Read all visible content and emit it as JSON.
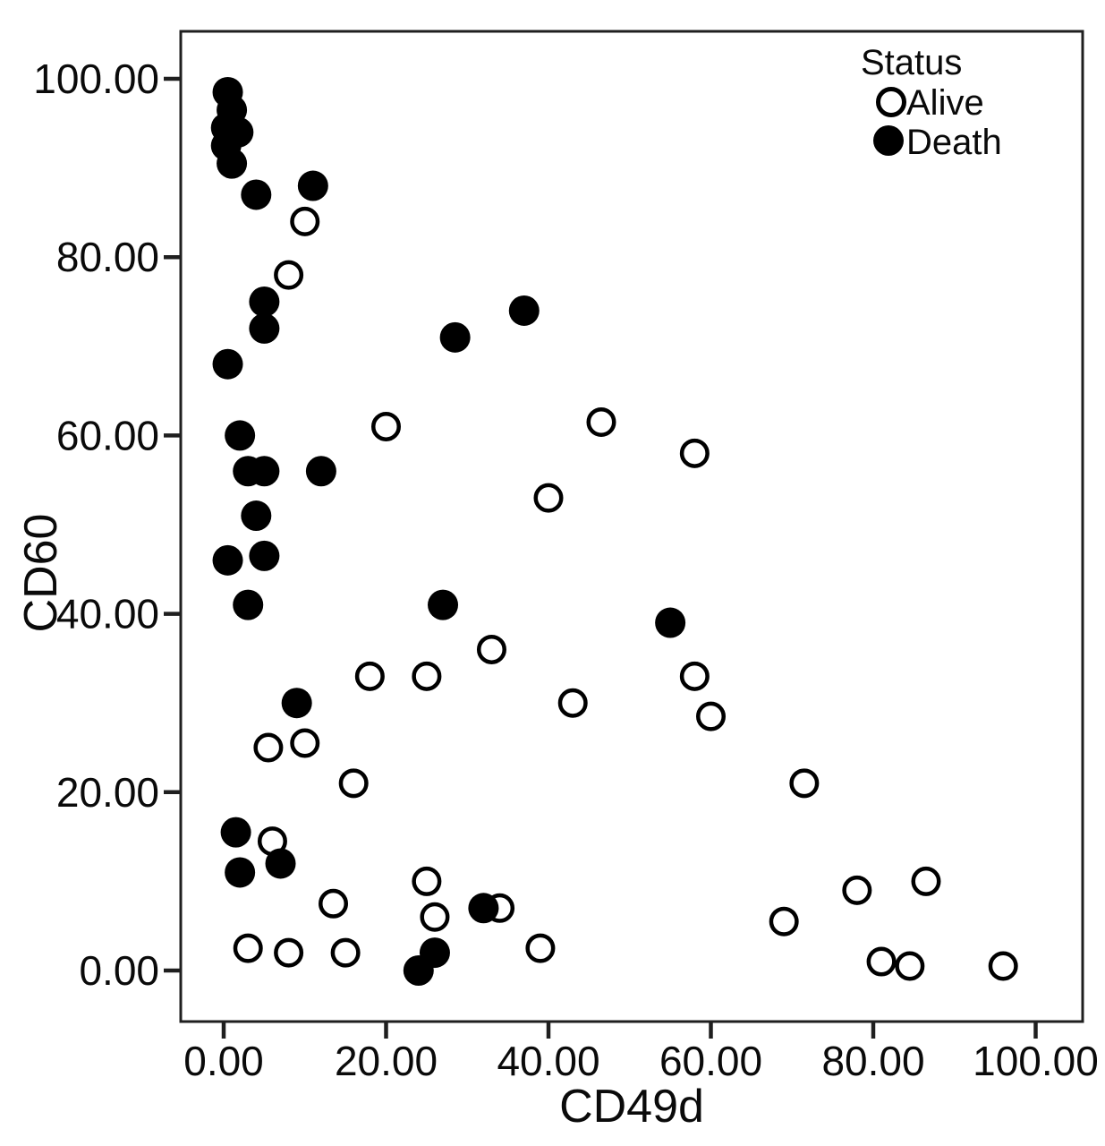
{
  "figure": {
    "legend": {
      "title": "Status",
      "entries": [
        {
          "label": "Alive",
          "marker": "open"
        },
        {
          "label": "Death",
          "marker": "filled"
        }
      ]
    }
  },
  "chart_data": {
    "type": "scatter",
    "title": "",
    "xlabel": "CD49d",
    "ylabel": "CD60",
    "xlim": [
      -5.3,
      105.8
    ],
    "ylim": [
      -5.7,
      105.3
    ],
    "grid": false,
    "legend_position": "top-right-inside",
    "background": "#ffffff",
    "marker_color": "#000000",
    "x_tick_values": [
      0,
      20,
      40,
      60,
      80,
      100
    ],
    "x_tick_labels": [
      "0.00",
      "20.00",
      "40.00",
      "60.00",
      "80.00",
      "100.00"
    ],
    "y_tick_values": [
      0,
      20,
      40,
      60,
      80,
      100
    ],
    "y_tick_labels": [
      "0.00",
      "20.00",
      "40.00",
      "60.00",
      "80.00",
      "100.00"
    ],
    "series": [
      {
        "name": "Alive",
        "marker": "open",
        "points": [
          [
            10,
            84
          ],
          [
            8,
            78
          ],
          [
            20,
            61
          ],
          [
            46.5,
            61.5
          ],
          [
            58,
            58
          ],
          [
            40,
            53
          ],
          [
            33,
            36
          ],
          [
            18,
            33
          ],
          [
            25,
            33
          ],
          [
            43,
            30
          ],
          [
            58,
            33
          ],
          [
            60,
            28.5
          ],
          [
            5.5,
            25
          ],
          [
            10,
            25.5
          ],
          [
            16,
            21
          ],
          [
            71.5,
            21
          ],
          [
            6,
            14.5
          ],
          [
            13.5,
            7.5
          ],
          [
            25,
            10
          ],
          [
            26,
            6
          ],
          [
            34,
            7
          ],
          [
            39,
            2.5
          ],
          [
            3,
            2.5
          ],
          [
            8,
            2
          ],
          [
            15,
            2
          ],
          [
            69,
            5.5
          ],
          [
            78,
            9
          ],
          [
            86.5,
            10
          ],
          [
            81,
            1
          ],
          [
            84.5,
            0.5
          ],
          [
            96,
            0.5
          ]
        ]
      },
      {
        "name": "Death",
        "marker": "filled",
        "points": [
          [
            0.5,
            98.5
          ],
          [
            1,
            96.5
          ],
          [
            0.3,
            94.5
          ],
          [
            1.8,
            94
          ],
          [
            0.3,
            92.5
          ],
          [
            1,
            90.5
          ],
          [
            4,
            87
          ],
          [
            11,
            88
          ],
          [
            5,
            75
          ],
          [
            5,
            72
          ],
          [
            0.5,
            68
          ],
          [
            28.5,
            71
          ],
          [
            37,
            74
          ],
          [
            2,
            60
          ],
          [
            3,
            56
          ],
          [
            5,
            56
          ],
          [
            12,
            56
          ],
          [
            4,
            51
          ],
          [
            0.5,
            46
          ],
          [
            5,
            46.5
          ],
          [
            3,
            41
          ],
          [
            27,
            41
          ],
          [
            55,
            39
          ],
          [
            9,
            30
          ],
          [
            1.5,
            15.5
          ],
          [
            7,
            12
          ],
          [
            2,
            11
          ],
          [
            32,
            7
          ],
          [
            26,
            2
          ],
          [
            24,
            0
          ]
        ]
      }
    ]
  }
}
